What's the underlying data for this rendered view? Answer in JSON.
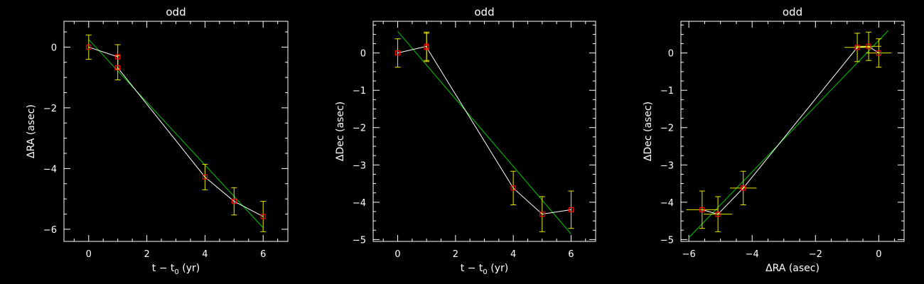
{
  "chart_data": [
    {
      "type": "scatter",
      "title": "odd",
      "xlabel_main": "t − t",
      "xlabel_sub": "0",
      "xlabel_tail": " (yr)",
      "ylabel_symbol": "Δ",
      "ylabel_text": "RA (asec)",
      "xlim": [
        -0.85,
        6.85
      ],
      "ylim": [
        -6.4,
        0.85
      ],
      "xticks": [
        0,
        2,
        4,
        6
      ],
      "yticks": [
        0,
        -2,
        -4,
        -6
      ],
      "xtick_labels": [
        "0",
        "2",
        "4",
        "6"
      ],
      "ytick_labels": [
        "0",
        "−2",
        "−4",
        "−6"
      ],
      "x": [
        0,
        1,
        1,
        4,
        5,
        6
      ],
      "y": [
        0,
        -0.32,
        -0.68,
        -4.28,
        -5.08,
        -5.58
      ],
      "yerr": [
        0.4,
        0.4,
        0.4,
        0.42,
        0.45,
        0.5
      ],
      "fit_line": {
        "x": [
          0,
          6
        ],
        "y": [
          0.25,
          -5.95
        ]
      }
    },
    {
      "type": "scatter",
      "title": "odd",
      "xlabel_main": "t − t",
      "xlabel_sub": "0",
      "xlabel_tail": " (yr)",
      "ylabel_symbol": "Δ",
      "ylabel_text": "Dec (asec)",
      "xlim": [
        -0.85,
        6.85
      ],
      "ylim": [
        -5.05,
        0.85
      ],
      "xticks": [
        0,
        2,
        4,
        6
      ],
      "yticks": [
        0,
        -1,
        -2,
        -3,
        -4,
        -5
      ],
      "xtick_labels": [
        "0",
        "2",
        "4",
        "6"
      ],
      "ytick_labels": [
        "0",
        "−1",
        "−2",
        "−3",
        "−4",
        "−5"
      ],
      "x": [
        0,
        1,
        1,
        4,
        5,
        6
      ],
      "y": [
        0,
        0.18,
        0.15,
        -3.62,
        -4.32,
        -4.2
      ],
      "yerr": [
        0.38,
        0.38,
        0.38,
        0.45,
        0.47,
        0.5
      ],
      "fit_line": {
        "x": [
          0,
          6
        ],
        "y": [
          0.58,
          -4.85
        ]
      }
    },
    {
      "type": "scatter",
      "title": "odd",
      "xlabel_symbol": "Δ",
      "xlabel_text": "RA (asec)",
      "ylabel_symbol": "Δ",
      "ylabel_text": "Dec (asec)",
      "xlim": [
        -6.25,
        0.8
      ],
      "ylim": [
        -5.05,
        0.85
      ],
      "xticks": [
        -6,
        -4,
        -2,
        0
      ],
      "yticks": [
        0,
        -1,
        -2,
        -3,
        -4,
        -5
      ],
      "xtick_labels": [
        "−6",
        "−4",
        "−2",
        "0"
      ],
      "ytick_labels": [
        "0",
        "−1",
        "−2",
        "−3",
        "−4",
        "−5"
      ],
      "x": [
        0,
        -0.32,
        -0.68,
        -4.28,
        -5.08,
        -5.58
      ],
      "y": [
        0,
        0.18,
        0.15,
        -3.62,
        -4.32,
        -4.2
      ],
      "xerr": [
        0.4,
        0.4,
        0.4,
        0.42,
        0.45,
        0.5
      ],
      "yerr": [
        0.38,
        0.38,
        0.38,
        0.45,
        0.47,
        0.5
      ],
      "fit_line": {
        "x": [
          -6,
          0.3
        ],
        "y": [
          -4.95,
          0.6
        ]
      }
    }
  ],
  "colors": {
    "background": "#000000",
    "axes": "#ffffff",
    "connect_line": "#ffffff",
    "fit_line": "#00c800",
    "error_bars": "#e8e800",
    "markers": "#ff0000"
  }
}
